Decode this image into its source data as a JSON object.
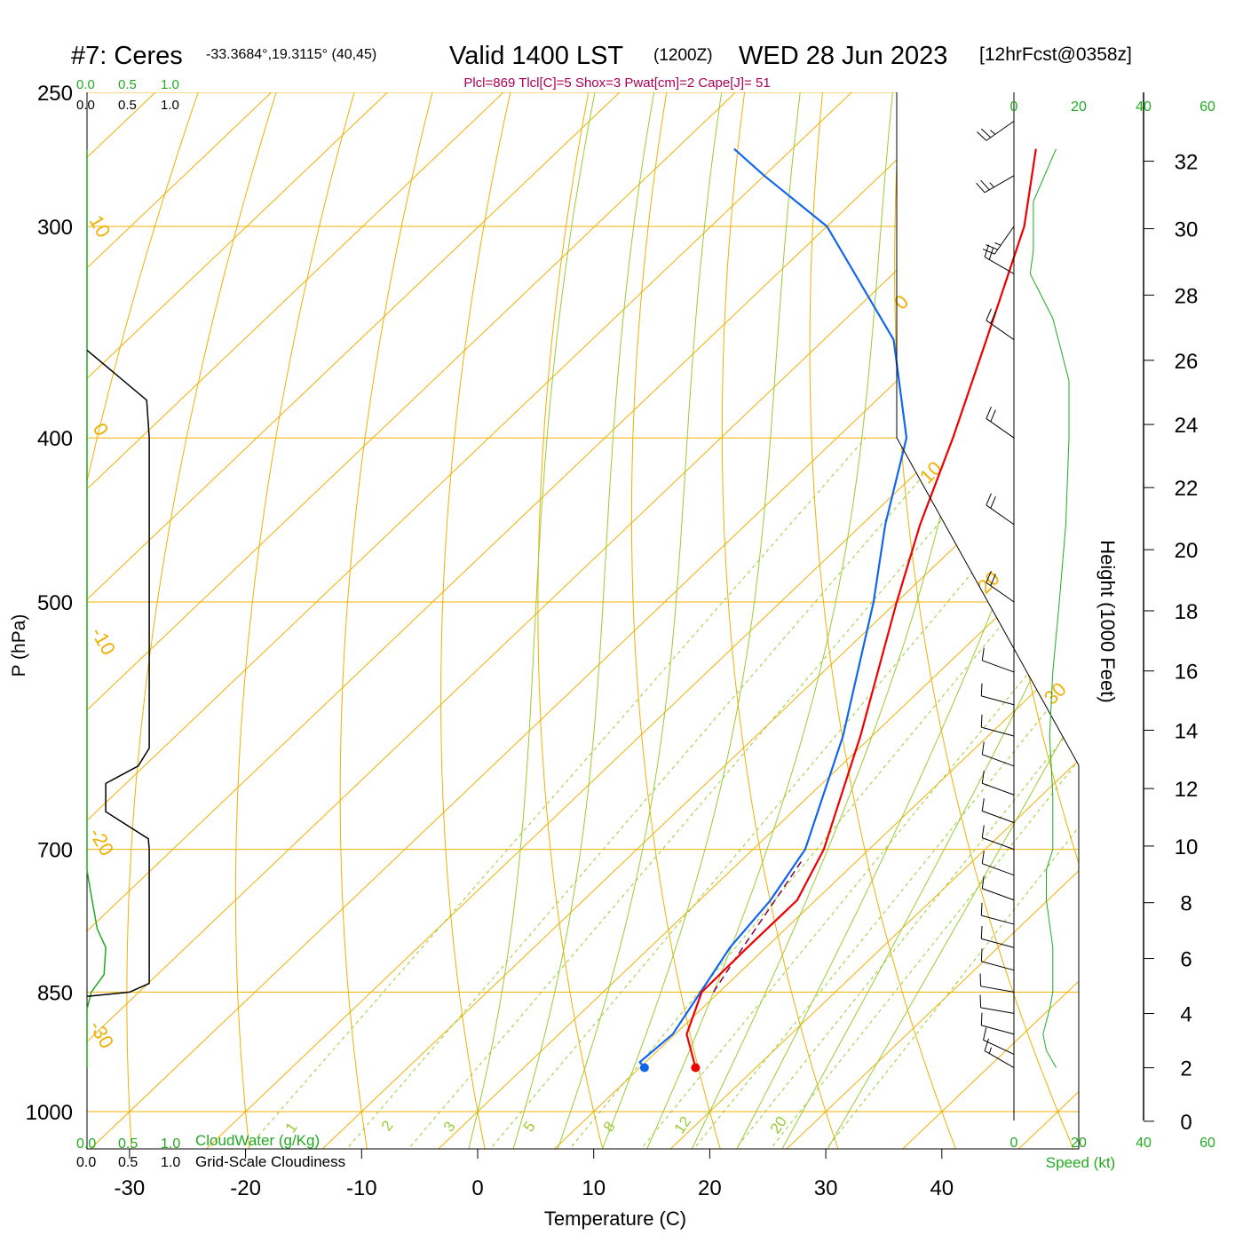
{
  "title": {
    "station": "#7: Ceres",
    "coords": "-33.3684°,19.3115° (40,45)",
    "valid": "Valid 1400 LST",
    "zulu": "(1200Z)",
    "date": "WED 28 Jun 2023",
    "forecast": "[12hrFcst@0358z]"
  },
  "indices": "Plcl=869 Tlcl[C]=5 Shox=3 Pwat[cm]=2 Cape[J]= 51",
  "cloud_scale": {
    "water_ticks": [
      "0.0",
      "0.5",
      "1.0"
    ],
    "cover_ticks": [
      "0.0",
      "0.5",
      "1.0"
    ],
    "water_label": "CloudWater (g/Kg)",
    "cover_label": "Grid-Scale Cloudiness"
  },
  "speed_scale": {
    "ticks": [
      "0",
      "20",
      "40",
      "60"
    ],
    "label": "Speed (kt)"
  },
  "colors": {
    "isotherm": "#f0b000",
    "mixing_ratio": "#99cc33",
    "temperature": "#ee0000",
    "dewpoint": "#1166ee",
    "parcel": "#800040",
    "cloud_water": "#22aa22",
    "cloudiness": "#000000",
    "index_text": "#aa0055"
  },
  "chart_data": {
    "type": "skew-t log-p sounding",
    "xlabel": "Temperature (C)",
    "ylabel": "P (hPa)",
    "y2label": "Height (1000 Feet)",
    "pressure_ticks": [
      "250",
      "300",
      "400",
      "500",
      "700",
      "850",
      "1000"
    ],
    "temperature_ticks": [
      "-30",
      "-20",
      "-10",
      "0",
      "10",
      "20",
      "30",
      "40"
    ],
    "height_ticks_kft": [
      "0",
      "2",
      "4",
      "6",
      "8",
      "10",
      "12",
      "14",
      "16",
      "18",
      "20",
      "22",
      "24",
      "26",
      "28",
      "30",
      "32"
    ],
    "isotherm_labels": [
      "10",
      "0",
      "-10",
      "-20",
      "-30",
      "0",
      "10",
      "20",
      "30"
    ],
    "mixing_ratio_labels": [
      "1",
      "2",
      "3",
      "5",
      "8",
      "12",
      "20"
    ],
    "temperature_profile": [
      {
        "p": 942,
        "t": 14.8
      },
      {
        "p": 900,
        "t": 11.0
      },
      {
        "p": 850,
        "t": 8.5
      },
      {
        "p": 800,
        "t": 8.4
      },
      {
        "p": 750,
        "t": 8.4
      },
      {
        "p": 700,
        "t": 6.1
      },
      {
        "p": 600,
        "t": -1.0
      },
      {
        "p": 500,
        "t": -10.0
      },
      {
        "p": 450,
        "t": -15.0
      },
      {
        "p": 400,
        "t": -20.0
      },
      {
        "p": 350,
        "t": -26.0
      },
      {
        "p": 300,
        "t": -33.0
      },
      {
        "p": 270,
        "t": -39.0
      }
    ],
    "dewpoint_profile": [
      {
        "p": 942,
        "t": 10.4
      },
      {
        "p": 935,
        "t": 9.5
      },
      {
        "p": 900,
        "t": 9.8
      },
      {
        "p": 850,
        "t": 8.4
      },
      {
        "p": 800,
        "t": 6.9
      },
      {
        "p": 750,
        "t": 6.1
      },
      {
        "p": 700,
        "t": 4.5
      },
      {
        "p": 600,
        "t": -2.5
      },
      {
        "p": 500,
        "t": -12.0
      },
      {
        "p": 450,
        "t": -18.0
      },
      {
        "p": 400,
        "t": -24.0
      },
      {
        "p": 350,
        "t": -34.0
      },
      {
        "p": 300,
        "t": -50.0
      },
      {
        "p": 280,
        "t": -60.0
      },
      {
        "p": 270,
        "t": -65.0
      }
    ],
    "parcel_profile": [
      {
        "p": 850,
        "t": 9.5
      },
      {
        "p": 800,
        "t": 8.0
      },
      {
        "p": 750,
        "t": 6.5
      },
      {
        "p": 710,
        "t": 5.2
      }
    ],
    "cloud_water_gkg": [
      {
        "p": 942,
        "v": 0.0
      },
      {
        "p": 870,
        "v": 0.0
      },
      {
        "p": 850,
        "v": 0.05
      },
      {
        "p": 830,
        "v": 0.2
      },
      {
        "p": 800,
        "v": 0.22
      },
      {
        "p": 780,
        "v": 0.12
      },
      {
        "p": 740,
        "v": 0.04
      },
      {
        "p": 720,
        "v": 0.0
      },
      {
        "p": 270,
        "v": 0.0
      }
    ],
    "cloudiness": [
      {
        "p": 855,
        "v": 0.0
      },
      {
        "p": 850,
        "v": 0.5
      },
      {
        "p": 840,
        "v": 0.73
      },
      {
        "p": 700,
        "v": 0.73
      },
      {
        "p": 690,
        "v": 0.72
      },
      {
        "p": 665,
        "v": 0.22
      },
      {
        "p": 640,
        "v": 0.22
      },
      {
        "p": 625,
        "v": 0.6
      },
      {
        "p": 610,
        "v": 0.73
      },
      {
        "p": 400,
        "v": 0.73
      },
      {
        "p": 380,
        "v": 0.7
      },
      {
        "p": 355,
        "v": 0.0
      }
    ],
    "wind_speed_kt": [
      {
        "p": 942,
        "v": 13
      },
      {
        "p": 920,
        "v": 10
      },
      {
        "p": 900,
        "v": 9
      },
      {
        "p": 870,
        "v": 11
      },
      {
        "p": 850,
        "v": 12
      },
      {
        "p": 800,
        "v": 12
      },
      {
        "p": 750,
        "v": 10
      },
      {
        "p": 720,
        "v": 10
      },
      {
        "p": 700,
        "v": 12
      },
      {
        "p": 650,
        "v": 12
      },
      {
        "p": 600,
        "v": 11
      },
      {
        "p": 550,
        "v": 12
      },
      {
        "p": 500,
        "v": 14
      },
      {
        "p": 450,
        "v": 16
      },
      {
        "p": 400,
        "v": 17
      },
      {
        "p": 370,
        "v": 17
      },
      {
        "p": 340,
        "v": 12
      },
      {
        "p": 320,
        "v": 5
      },
      {
        "p": 310,
        "v": 6
      },
      {
        "p": 290,
        "v": 6
      },
      {
        "p": 270,
        "v": 13
      }
    ],
    "wind_barbs": [
      {
        "p": 942,
        "dir": 300,
        "kt": 13
      },
      {
        "p": 925,
        "dir": 295,
        "kt": 12
      },
      {
        "p": 900,
        "dir": 285,
        "kt": 10
      },
      {
        "p": 875,
        "dir": 280,
        "kt": 10
      },
      {
        "p": 850,
        "dir": 280,
        "kt": 12
      },
      {
        "p": 825,
        "dir": 285,
        "kt": 12
      },
      {
        "p": 800,
        "dir": 285,
        "kt": 12
      },
      {
        "p": 775,
        "dir": 285,
        "kt": 11
      },
      {
        "p": 750,
        "dir": 290,
        "kt": 10
      },
      {
        "p": 725,
        "dir": 290,
        "kt": 10
      },
      {
        "p": 700,
        "dir": 290,
        "kt": 12
      },
      {
        "p": 675,
        "dir": 290,
        "kt": 12
      },
      {
        "p": 650,
        "dir": 290,
        "kt": 12
      },
      {
        "p": 625,
        "dir": 290,
        "kt": 11
      },
      {
        "p": 600,
        "dir": 285,
        "kt": 11
      },
      {
        "p": 575,
        "dir": 285,
        "kt": 12
      },
      {
        "p": 550,
        "dir": 290,
        "kt": 12
      },
      {
        "p": 500,
        "dir": 305,
        "kt": 18
      },
      {
        "p": 450,
        "dir": 305,
        "kt": 18
      },
      {
        "p": 400,
        "dir": 305,
        "kt": 18
      },
      {
        "p": 350,
        "dir": 305,
        "kt": 18
      },
      {
        "p": 320,
        "dir": 300,
        "kt": 18
      },
      {
        "p": 300,
        "dir": 215,
        "kt": 25
      },
      {
        "p": 280,
        "dir": 240,
        "kt": 25
      },
      {
        "p": 260,
        "dir": 235,
        "kt": 25
      }
    ],
    "surface_temperature_c": 14.8,
    "surface_dewpoint_c": 10.4
  }
}
